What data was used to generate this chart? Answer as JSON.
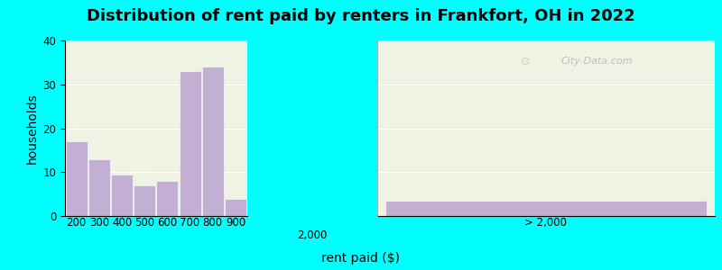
{
  "title": "Distribution of rent paid by renters in Frankfort, OH in 2022",
  "xlabel": "rent paid ($)",
  "ylabel": "households",
  "bar_color": "#c4afd4",
  "outer_background": "#00ffff",
  "bg_color": "#eef3e4",
  "ylim": [
    0,
    40
  ],
  "yticks": [
    0,
    10,
    20,
    30,
    40
  ],
  "bars_left": {
    "labels": [
      "200",
      "300",
      "400",
      "500",
      "600",
      "700",
      "800",
      "900"
    ],
    "values": [
      17,
      13,
      9.5,
      7,
      8,
      33,
      34,
      4
    ]
  },
  "label_2000": "2,000",
  "label_gt2000": "> 2,000",
  "value_gt2000": 3.5,
  "watermark": "City-Data.com",
  "title_fontsize": 13,
  "axis_label_fontsize": 10,
  "tick_fontsize": 8.5
}
